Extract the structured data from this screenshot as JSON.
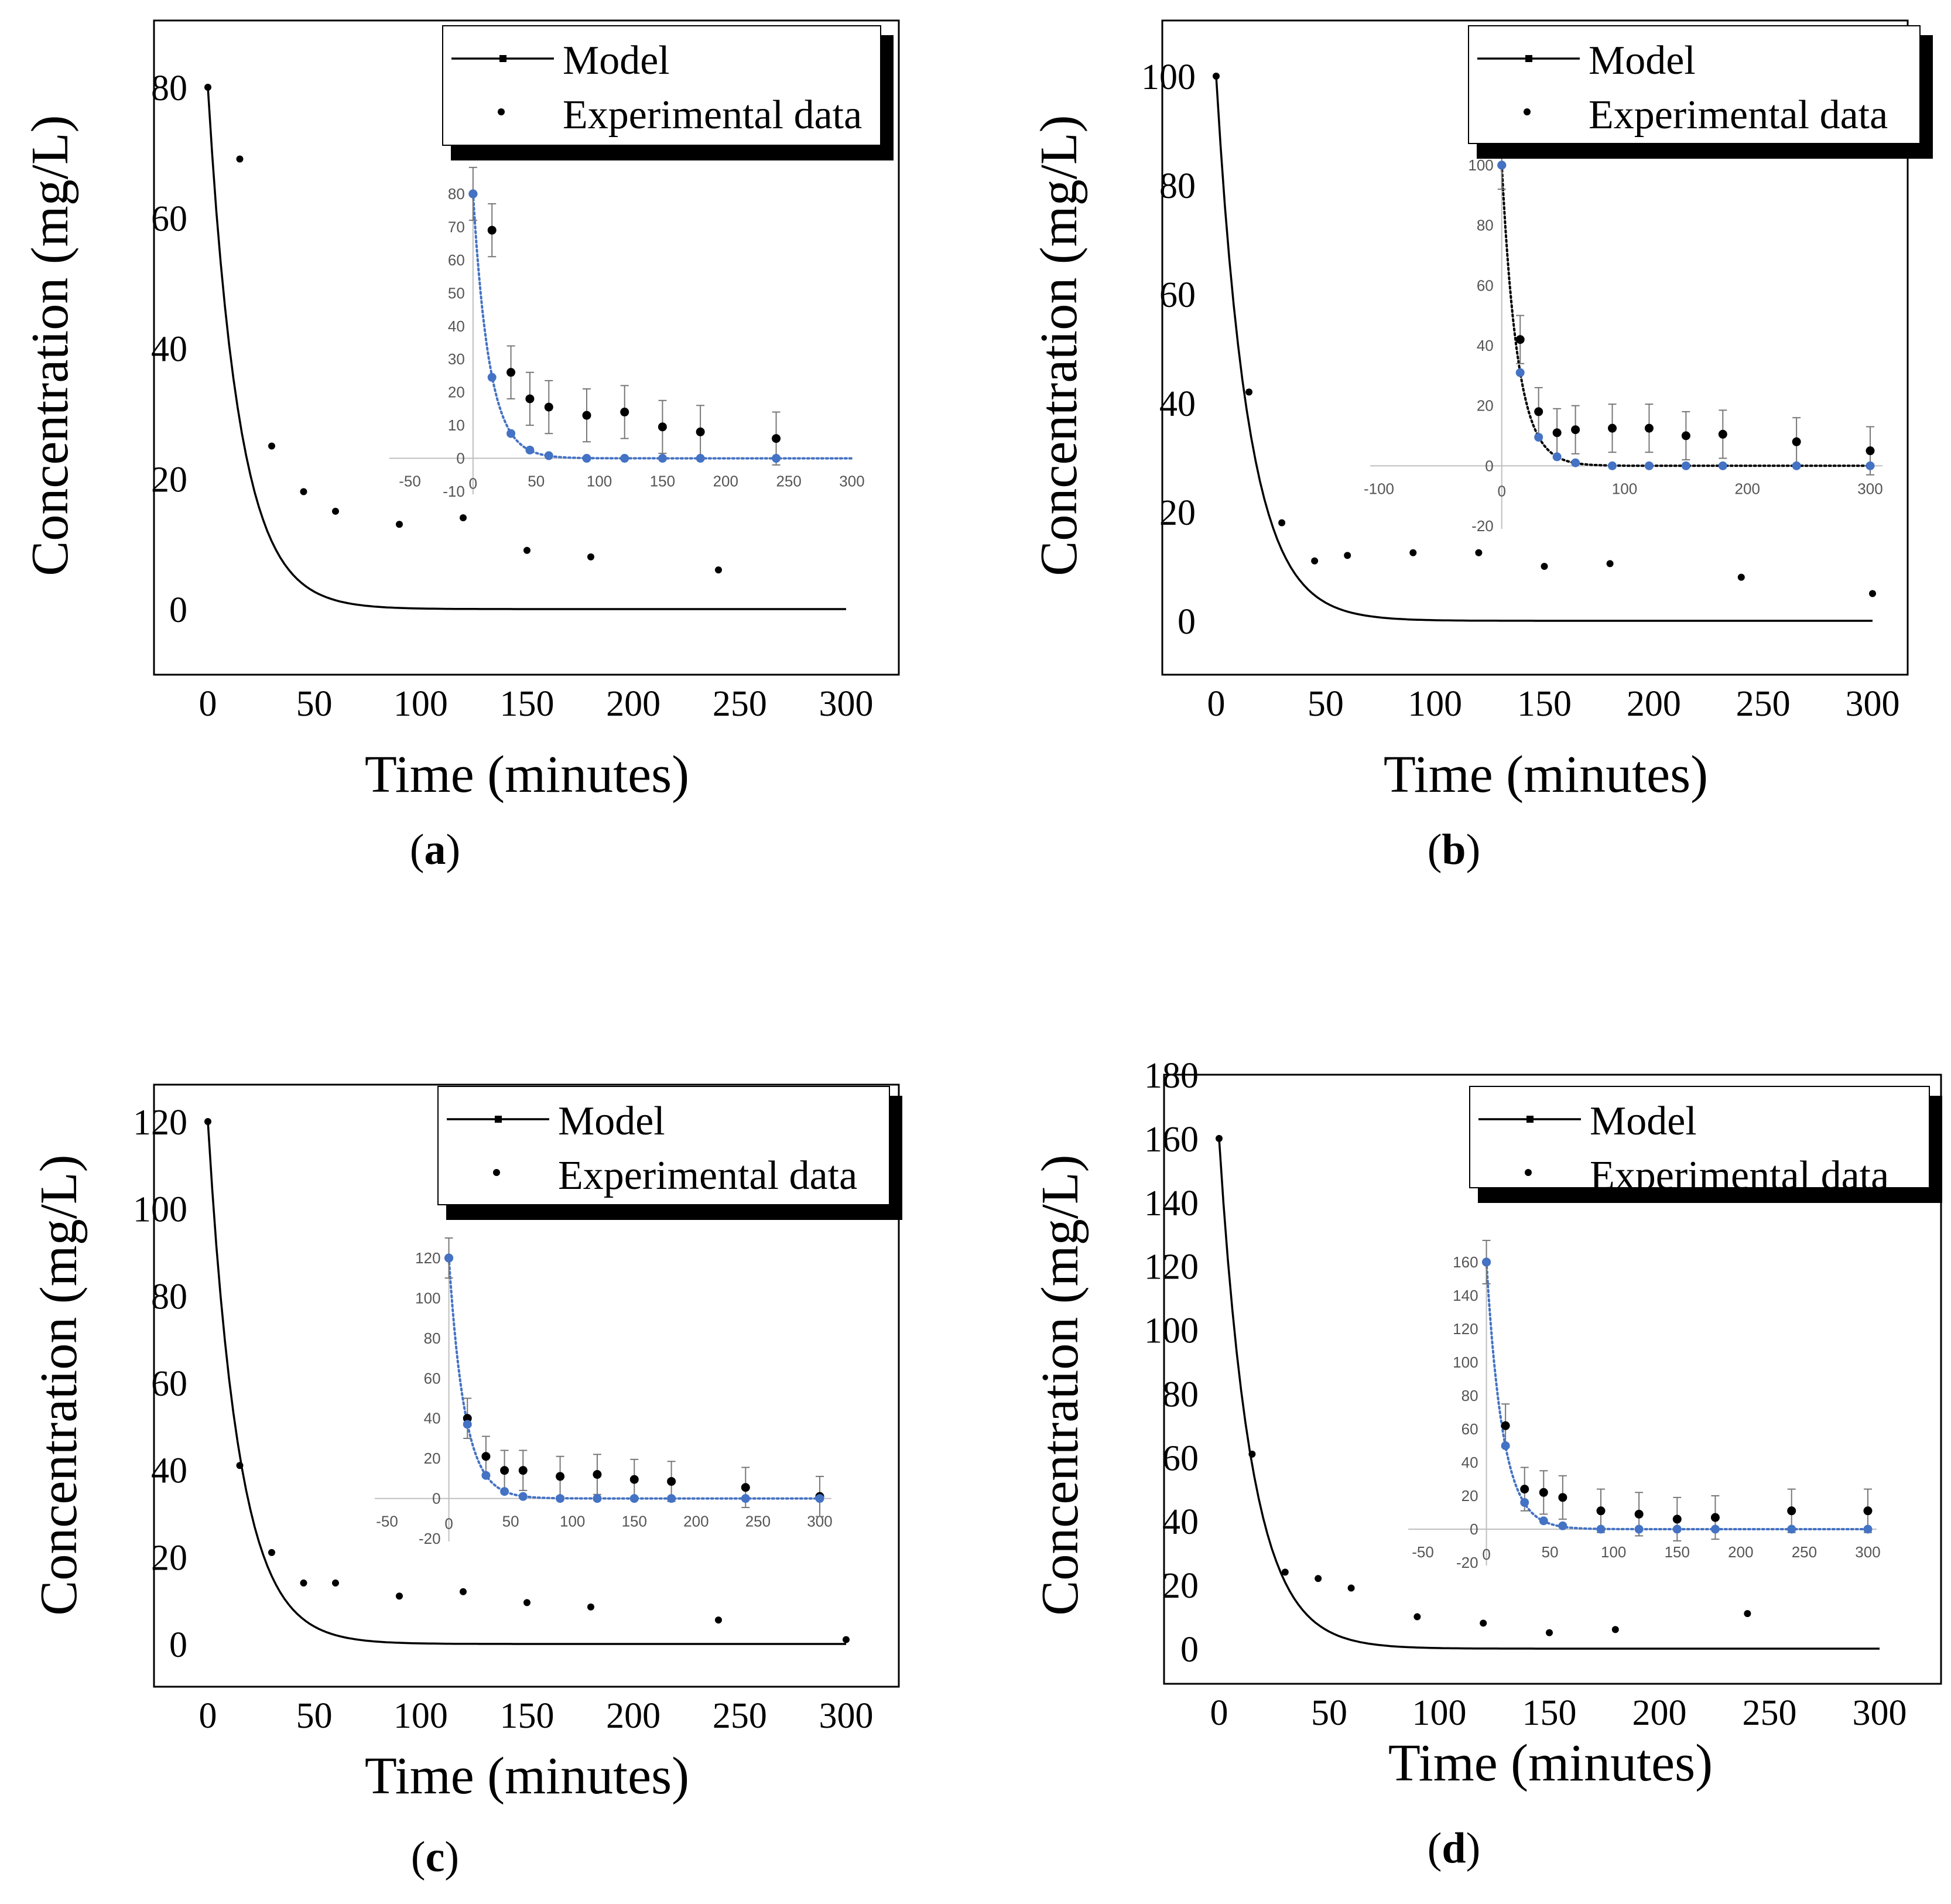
{
  "figure": {
    "panels": [
      {
        "id": "a",
        "caption_letter": "a"
      },
      {
        "id": "b",
        "caption_letter": "b"
      },
      {
        "id": "c",
        "caption_letter": "c"
      },
      {
        "id": "d",
        "caption_letter": "d"
      }
    ]
  },
  "chart_data": [
    {
      "panel": "a",
      "type": "line",
      "xlabel": "Time (minutes)",
      "ylabel": "Concentration (mg/L)",
      "xlim": [
        -25,
        325
      ],
      "ylim": [
        -10,
        90
      ],
      "xticks": [
        "0",
        "50",
        "100",
        "150",
        "200",
        "250",
        "300"
      ],
      "yticks": [
        "0",
        "20",
        "40",
        "60",
        "80"
      ],
      "legend": {
        "position": "top-right",
        "entries": [
          "Model",
          "Experimental data"
        ]
      },
      "model": {
        "c0": 80,
        "k": 0.068,
        "x_end": 300
      },
      "series": [
        {
          "name": "Experimental data",
          "x": [
            0,
            15,
            30,
            45,
            60,
            90,
            120,
            150,
            180,
            240
          ],
          "y": [
            80,
            69,
            25,
            18,
            15,
            13,
            14,
            9,
            8,
            6
          ]
        }
      ],
      "inset": {
        "type": "scatter",
        "xlim": [
          -50,
          300
        ],
        "ylim": [
          -10,
          80
        ],
        "xticks": [
          "-50",
          "0",
          "50",
          "100",
          "150",
          "200",
          "250",
          "300"
        ],
        "yticks": [
          "-10",
          "0",
          "10",
          "20",
          "30",
          "40",
          "50",
          "60",
          "70",
          "80"
        ],
        "model_color": "#4472c4",
        "experimental": {
          "x": [
            0,
            15,
            30,
            45,
            60,
            90,
            120,
            150,
            180,
            240
          ],
          "y": [
            80,
            69,
            26,
            18,
            15.5,
            13,
            14,
            9.5,
            8,
            6
          ],
          "err": [
            8,
            8,
            8,
            8,
            8,
            8,
            8,
            8,
            8,
            8
          ]
        },
        "model_points": {
          "x": [
            0,
            15,
            30,
            45,
            60,
            90,
            120,
            150,
            180,
            240
          ],
          "y": [
            80,
            24.5,
            7.5,
            2.5,
            0.8,
            0,
            0,
            0,
            0,
            0
          ]
        }
      }
    },
    {
      "panel": "b",
      "type": "line",
      "xlabel": "Time (minutes)",
      "ylabel": "Concentration (mg/L)",
      "xlim": [
        -25,
        325
      ],
      "ylim": [
        -10,
        110
      ],
      "xticks": [
        "0",
        "50",
        "100",
        "150",
        "200",
        "250",
        "300"
      ],
      "yticks": [
        "0",
        "20",
        "40",
        "60",
        "80",
        "100"
      ],
      "legend": {
        "position": "top-right",
        "entries": [
          "Model",
          "Experimental data"
        ]
      },
      "model": {
        "c0": 100,
        "k": 0.068,
        "x_end": 300
      },
      "series": [
        {
          "name": "Experimental data",
          "x": [
            0,
            15,
            30,
            45,
            60,
            90,
            120,
            150,
            180,
            240,
            300
          ],
          "y": [
            100,
            42,
            18,
            11,
            12,
            12.5,
            12.5,
            10,
            10.5,
            8,
            5
          ]
        }
      ],
      "inset": {
        "type": "scatter",
        "xlim": [
          -100,
          300
        ],
        "ylim": [
          -20,
          100
        ],
        "xticks": [
          "-100",
          "0",
          "100",
          "200",
          "300"
        ],
        "yticks": [
          "-20",
          "0",
          "20",
          "40",
          "60",
          "80",
          "100"
        ],
        "model_color": "#000000",
        "experimental": {
          "x": [
            0,
            15,
            30,
            45,
            60,
            90,
            120,
            150,
            180,
            240,
            300
          ],
          "y": [
            100,
            42,
            18,
            11,
            12,
            12.5,
            12.5,
            10,
            10.5,
            8,
            5
          ],
          "err": [
            8,
            8,
            8,
            8,
            8,
            8,
            8,
            8,
            8,
            8,
            8
          ]
        },
        "model_points": {
          "x": [
            0,
            15,
            30,
            45,
            60,
            90,
            120,
            150,
            180,
            240,
            300
          ],
          "y": [
            100,
            31,
            9.5,
            3,
            1,
            0,
            0,
            0,
            0,
            0,
            0
          ]
        }
      }
    },
    {
      "panel": "c",
      "type": "line",
      "xlabel": "Time (minutes)",
      "ylabel": "Concentration (mg/L)",
      "xlim": [
        -25,
        325
      ],
      "ylim": [
        -10,
        130
      ],
      "xticks": [
        "0",
        "50",
        "100",
        "150",
        "200",
        "250",
        "300"
      ],
      "yticks": [
        "0",
        "20",
        "40",
        "60",
        "80",
        "100",
        "120"
      ],
      "legend": {
        "position": "top-right",
        "entries": [
          "Model",
          "Experimental data"
        ]
      },
      "model": {
        "c0": 120,
        "k": 0.068,
        "x_end": 300
      },
      "series": [
        {
          "name": "Experimental data",
          "x": [
            0,
            15,
            30,
            45,
            60,
            90,
            120,
            150,
            180,
            240,
            300
          ],
          "y": [
            120,
            41,
            21,
            14,
            14,
            11,
            12,
            9.5,
            8.5,
            5.5,
            1
          ]
        }
      ],
      "inset": {
        "type": "scatter",
        "xlim": [
          -50,
          300
        ],
        "ylim": [
          -20,
          120
        ],
        "xticks": [
          "-50",
          "0",
          "50",
          "100",
          "150",
          "200",
          "250",
          "300"
        ],
        "yticks": [
          "-20",
          "0",
          "20",
          "40",
          "60",
          "80",
          "100",
          "120"
        ],
        "model_color": "#4472c4",
        "experimental": {
          "x": [
            0,
            15,
            30,
            45,
            60,
            90,
            120,
            150,
            180,
            240,
            300
          ],
          "y": [
            120,
            40,
            21,
            14,
            14,
            11,
            12,
            9.5,
            8.5,
            5.5,
            1
          ],
          "err": [
            10,
            10,
            10,
            10,
            10,
            10,
            10,
            10,
            10,
            10,
            10
          ]
        },
        "model_points": {
          "x": [
            0,
            15,
            30,
            45,
            60,
            90,
            120,
            150,
            180,
            240,
            300
          ],
          "y": [
            120,
            37,
            11.5,
            3.5,
            1,
            0,
            0,
            0,
            0,
            0,
            0
          ]
        }
      }
    },
    {
      "panel": "d",
      "type": "line",
      "xlabel": "Time (minutes)",
      "ylabel": "Concentration (mg/L)",
      "xlim": [
        -25,
        325
      ],
      "ylim": [
        -10,
        180
      ],
      "xticks": [
        "0",
        "50",
        "100",
        "150",
        "200",
        "250",
        "300"
      ],
      "yticks": [
        "0",
        "20",
        "40",
        "60",
        "80",
        "100",
        "120",
        "140",
        "160",
        "180"
      ],
      "legend": {
        "position": "top-right",
        "entries": [
          "Model",
          "Experimental data"
        ]
      },
      "model": {
        "c0": 160,
        "k": 0.068,
        "x_end": 300
      },
      "series": [
        {
          "name": "Experimental data",
          "x": [
            0,
            15,
            30,
            45,
            60,
            90,
            120,
            150,
            180,
            240
          ],
          "y": [
            160,
            61,
            24,
            22,
            19,
            10,
            8,
            5,
            6,
            11
          ]
        }
      ],
      "inset": {
        "type": "scatter",
        "xlim": [
          -50,
          300
        ],
        "ylim": [
          -20,
          160
        ],
        "xticks": [
          "-50",
          "0",
          "50",
          "100",
          "150",
          "200",
          "250",
          "300"
        ],
        "yticks": [
          "-20",
          "0",
          "20",
          "40",
          "60",
          "80",
          "100",
          "120",
          "140",
          "160"
        ],
        "model_color": "#4472c4",
        "experimental": {
          "x": [
            0,
            15,
            30,
            45,
            60,
            90,
            120,
            150,
            180,
            240,
            300
          ],
          "y": [
            160,
            62,
            24,
            22,
            19,
            11,
            9,
            6,
            7,
            11,
            11
          ],
          "err": [
            13,
            13,
            13,
            13,
            13,
            13,
            13,
            13,
            13,
            13,
            13
          ]
        },
        "model_points": {
          "x": [
            0,
            15,
            30,
            45,
            60,
            90,
            120,
            150,
            180,
            240,
            300
          ],
          "y": [
            160,
            50,
            16,
            5,
            2,
            0,
            0,
            0,
            0,
            0,
            0
          ]
        }
      }
    }
  ]
}
